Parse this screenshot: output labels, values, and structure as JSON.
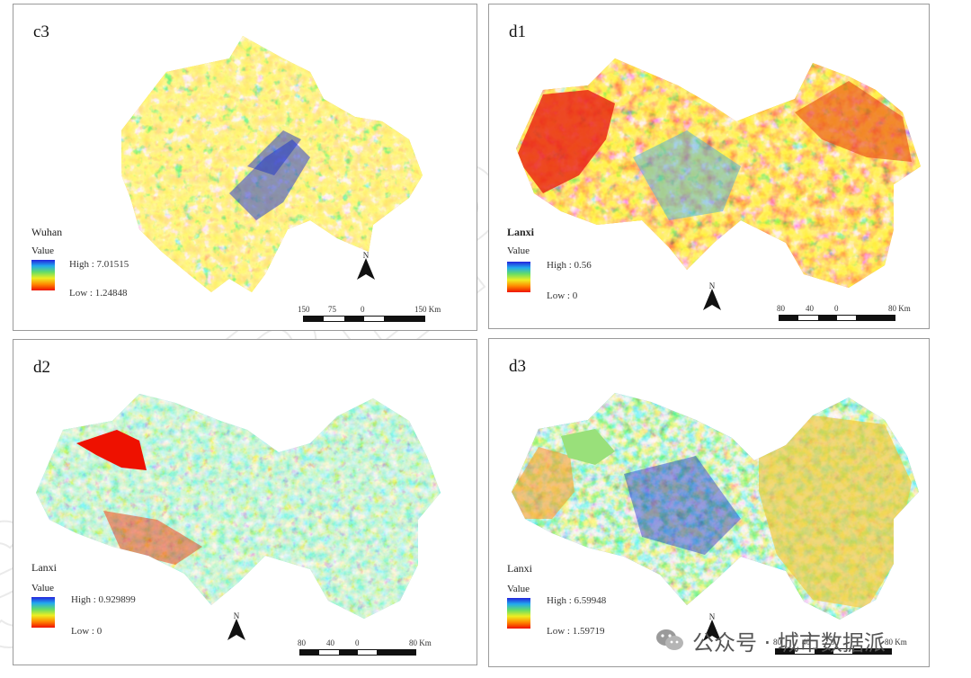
{
  "panels": [
    {
      "label": "c3",
      "region": "Wuhan",
      "legend_title": "Value",
      "high": "High : 7.01515",
      "low": "Low : 1.24848",
      "north": "N",
      "scale_ticks": [
        "150",
        "75",
        "0",
        "150 Km"
      ]
    },
    {
      "label": "d1",
      "region": "Lanxi",
      "legend_title": "Value",
      "high": "High : 0.56",
      "low": "Low : 0",
      "north": "N",
      "scale_ticks": [
        "80",
        "40",
        "0",
        "80 Km"
      ]
    },
    {
      "label": "d2",
      "region": "Lanxi",
      "legend_title": "Value",
      "high": "High : 0.929899",
      "low": "Low : 0",
      "north": "N",
      "scale_ticks": [
        "80",
        "40",
        "0",
        "80 Km"
      ]
    },
    {
      "label": "d3",
      "region": "Lanxi",
      "legend_title": "Value",
      "high": "High : 6.59948",
      "low": "Low : 1.59719",
      "north": "N",
      "scale_ticks": [
        "80",
        "40",
        "0",
        "80 Km"
      ]
    }
  ],
  "watermark": {
    "text": "STUREPORT",
    "name": "城市数据派"
  },
  "brand": {
    "text": "公众号 · 城市数据派"
  },
  "colors": {
    "high": "#2222dd",
    "mid": "#eeee22",
    "low": "#ee1100",
    "accent_green": "#99e07a"
  }
}
